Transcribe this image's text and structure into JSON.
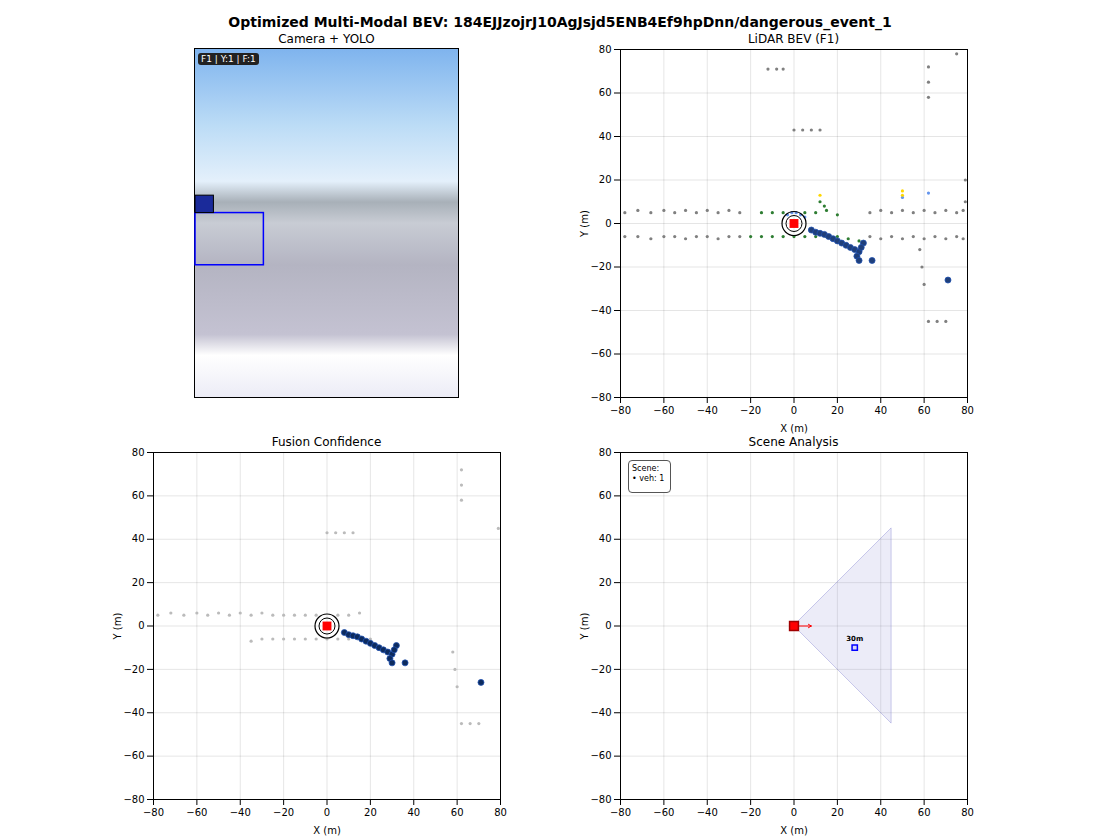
{
  "title": "Optimized Multi-Modal BEV: 184EJJzojrJ10AgJsjd5ENB4Ef9hpDnn/dangerous_event_1",
  "chart_data": [
    {
      "type": "image",
      "title": "Camera + YOLO",
      "overlay": "F1 | Y:1 | F:1",
      "xlim": [
        0,
        100
      ],
      "ylim": [
        0,
        100
      ],
      "tick_labels": false,
      "boxes": [
        {
          "x0": 0,
          "x1": 26,
          "y0": 38,
          "y1": 53,
          "color": "#0000ff"
        }
      ]
    },
    {
      "type": "scatter",
      "title": "LiDAR BEV (F1)",
      "xlabel": "X (m)",
      "ylabel": "Y (m)",
      "xlim": [
        -80,
        80
      ],
      "ylim": [
        -80,
        80
      ],
      "xticks": [
        -80,
        -60,
        -40,
        -20,
        0,
        20,
        40,
        60,
        80
      ],
      "yticks": [
        -80,
        -60,
        -40,
        -20,
        0,
        20,
        40,
        60,
        80
      ],
      "grid": true,
      "series": [
        {
          "color": "#808080",
          "marker": "circle",
          "x": [
            -78,
            -72,
            -66,
            -60,
            -55,
            -50,
            -45,
            -40,
            -35,
            -30,
            -25,
            -78,
            -72,
            -66,
            -60,
            -55,
            -50,
            -45,
            -40,
            -35,
            -30,
            -25,
            35,
            40,
            45,
            50,
            55,
            60,
            65,
            70,
            75,
            78,
            35,
            40,
            45,
            50,
            55,
            60,
            65,
            70,
            75,
            78,
            -12,
            -8,
            -5,
            0,
            4,
            8,
            12,
            62,
            66,
            70,
            62,
            62,
            62,
            75,
            58,
            59,
            60,
            79,
            79
          ],
          "y": [
            5,
            6,
            5,
            6,
            5,
            6,
            5,
            6,
            5,
            6,
            5,
            -6,
            -6,
            -7,
            -6,
            -6,
            -7,
            -6,
            -6,
            -7,
            -6,
            -6,
            5,
            6,
            5,
            6,
            5,
            6,
            5,
            6,
            5,
            6,
            -6,
            -7,
            -6,
            -7,
            -6,
            -7,
            -6,
            -7,
            -6,
            -7,
            71,
            71,
            71,
            43,
            43,
            43,
            43,
            -45,
            -45,
            -45,
            58,
            65,
            72,
            78,
            -12,
            -20,
            -28,
            20,
            10
          ]
        },
        {
          "color": "#2e7d32",
          "marker": "circle",
          "x": [
            -20,
            -15,
            -10,
            -5,
            0,
            5,
            10,
            15,
            20,
            25,
            30,
            -15,
            -10,
            -5,
            5,
            10,
            15,
            20,
            12,
            14
          ],
          "y": [
            -6,
            -6,
            -6,
            -6,
            -6,
            -6,
            -6,
            -6,
            -6,
            -7,
            -8,
            5,
            5,
            5,
            5,
            5,
            6,
            4,
            10,
            8
          ]
        },
        {
          "color": "#6495ed",
          "marker": "circle",
          "x": [
            -3,
            -1,
            1,
            3,
            5,
            62,
            50
          ],
          "y": [
            4,
            5,
            5,
            4,
            3,
            14,
            12
          ]
        },
        {
          "color": "#ffd700",
          "marker": "circle",
          "x": [
            12,
            50,
            50
          ],
          "y": [
            13,
            13,
            15
          ]
        },
        {
          "color": "#1f3f7a",
          "marker": "circle",
          "x": [
            8,
            10,
            12,
            14,
            16,
            18,
            20,
            22,
            24,
            26,
            28,
            30,
            32,
            31,
            29,
            30,
            36,
            71
          ],
          "y": [
            -3,
            -4,
            -4.5,
            -5,
            -6,
            -7,
            -8,
            -9,
            -10,
            -11,
            -12,
            -13,
            -9,
            -11,
            -15,
            -17,
            -17,
            -26
          ]
        },
        {
          "color": "#ff0000",
          "marker": "square",
          "x": [
            0
          ],
          "y": [
            0
          ]
        }
      ]
    },
    {
      "type": "scatter",
      "title": "Fusion Confidence",
      "xlabel": "X (m)",
      "ylabel": "Y (m)",
      "xlim": [
        -80,
        80
      ],
      "ylim": [
        -80,
        80
      ],
      "xticks": [
        -80,
        -60,
        -40,
        -20,
        0,
        20,
        40,
        60,
        80
      ],
      "yticks": [
        -80,
        -60,
        -40,
        -20,
        0,
        20,
        40,
        60,
        80
      ],
      "grid": true,
      "series": [
        {
          "color": "#bbbbbb",
          "marker": "circle",
          "x": [
            -78,
            -72,
            -66,
            -60,
            -55,
            -50,
            -45,
            -40,
            -35,
            -30,
            -25,
            -20,
            -15,
            -10,
            -5,
            0,
            5,
            10,
            15,
            20,
            -35,
            -30,
            -25,
            -20,
            -15,
            -10,
            -5,
            5,
            10,
            15,
            0,
            4,
            8,
            12,
            62,
            66,
            70,
            62,
            62,
            62,
            58,
            59,
            60,
            79
          ],
          "y": [
            5,
            6,
            5,
            6,
            5,
            6,
            5,
            6,
            5,
            6,
            5,
            -6,
            -6,
            -6,
            -6,
            -6,
            -6,
            -6,
            -6,
            -6,
            -7,
            -6,
            -6,
            5,
            5,
            5,
            5,
            5,
            5,
            6,
            43,
            43,
            43,
            43,
            -45,
            -45,
            -45,
            58,
            65,
            72,
            -12,
            -20,
            -28,
            45
          ]
        },
        {
          "color": "#0d2b5e",
          "marker": "circle",
          "x": [
            8,
            10,
            12,
            14,
            16,
            18,
            20,
            22,
            24,
            26,
            28,
            30,
            32,
            31,
            29,
            30,
            36,
            71
          ],
          "y": [
            -3,
            -4,
            -4.5,
            -5,
            -6,
            -7,
            -8,
            -9,
            -10,
            -11,
            -12,
            -13,
            -9,
            -11,
            -15,
            -17,
            -17,
            -26
          ]
        },
        {
          "color": "#ff0000",
          "marker": "square",
          "x": [
            0
          ],
          "y": [
            0
          ]
        }
      ]
    },
    {
      "type": "scene",
      "title": "Scene Analysis",
      "xlabel": "X (m)",
      "ylabel": "Y (m)",
      "xlim": [
        -80,
        80
      ],
      "ylim": [
        -80,
        80
      ],
      "xticks": [
        -80,
        -60,
        -40,
        -20,
        0,
        20,
        40,
        60,
        80
      ],
      "yticks": [
        -80,
        -60,
        -40,
        -20,
        0,
        20,
        40,
        60,
        80
      ],
      "grid": true,
      "ego": {
        "x": 0,
        "y": 0,
        "heading_x": 8,
        "heading_y": 0,
        "color": "#ff0000"
      },
      "fov": {
        "x": [
          0,
          45
        ],
        "y_low": [
          0,
          -45
        ],
        "y_high": [
          0,
          45
        ],
        "color": "#8080d0"
      },
      "objects": [
        {
          "x": 28,
          "y": -10,
          "label": "30m",
          "color": "#0000ff"
        }
      ],
      "info": [
        "Scene:",
        "• veh: 1"
      ]
    }
  ]
}
